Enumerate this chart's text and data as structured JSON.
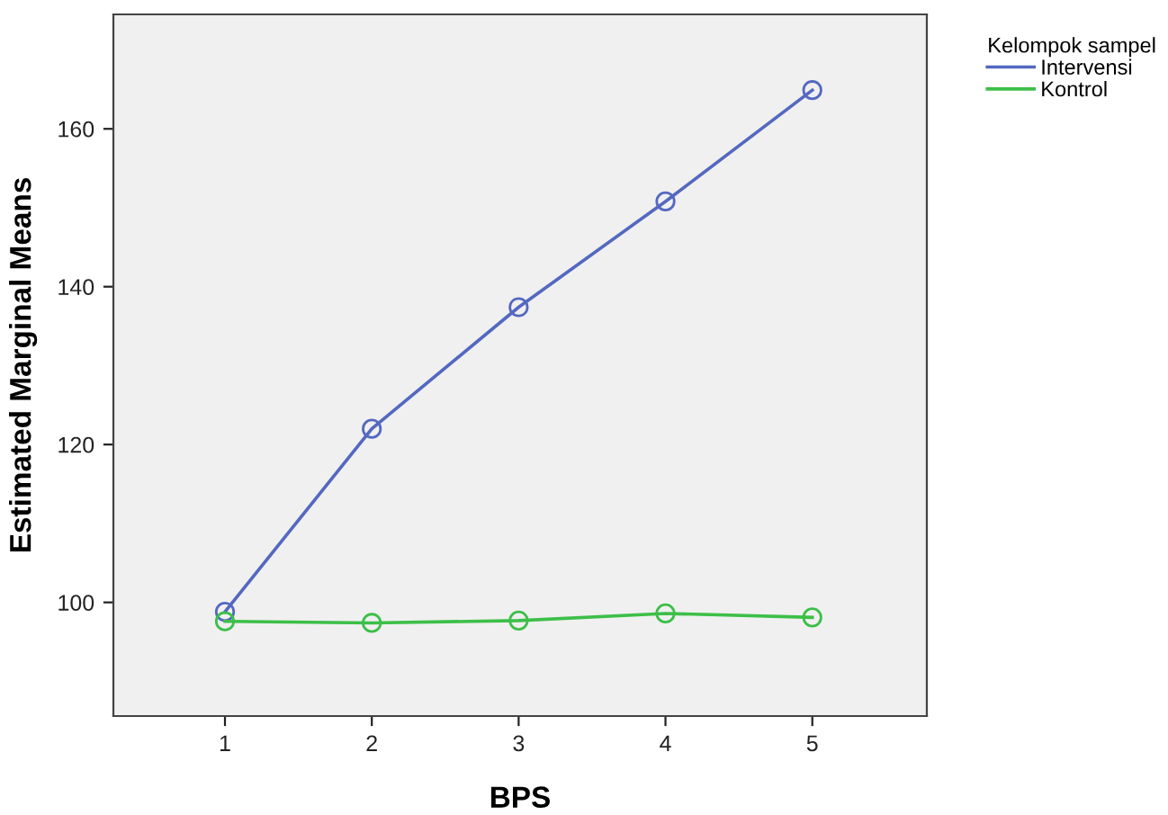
{
  "chart_data": {
    "type": "line",
    "xlabel": "BPS",
    "ylabel": "Estimated Marginal Means",
    "legend_title": "Kelompok sampel",
    "x": [
      1,
      2,
      3,
      4,
      5
    ],
    "series": [
      {
        "name": "Intervensi",
        "color": "#5468c0",
        "values": [
          98.8,
          122.0,
          137.4,
          150.8,
          164.9
        ]
      },
      {
        "name": "Kontrol",
        "color": "#3cbf48",
        "values": [
          97.6,
          97.4,
          97.7,
          98.6,
          98.1
        ]
      }
    ],
    "xlim": [
      0.24,
      5.78
    ],
    "xticks": [
      1,
      2,
      3,
      4,
      5
    ],
    "ylim": [
      85.6,
      174.5
    ],
    "yticks": [
      100,
      120,
      140,
      160
    ],
    "grid": false,
    "legend": "top right",
    "marker": "circle",
    "line_style": "solid"
  }
}
